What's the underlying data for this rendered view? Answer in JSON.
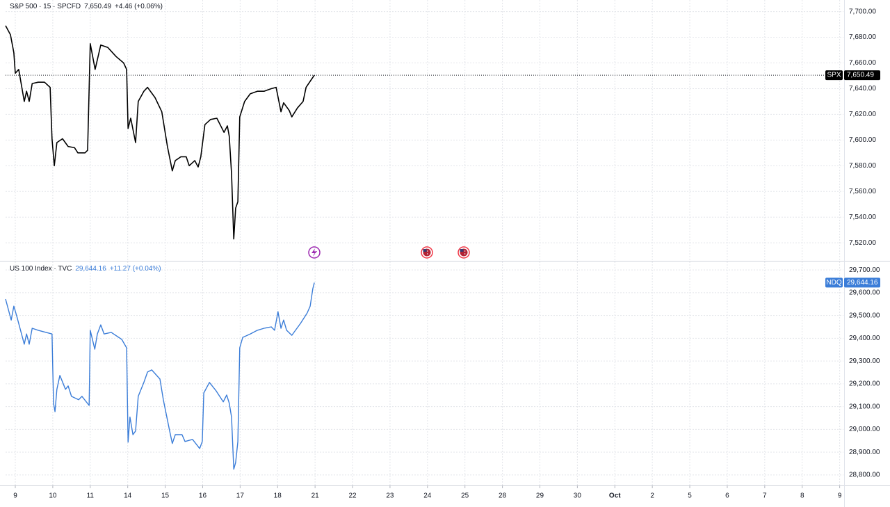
{
  "chart_data": [
    {
      "type": "line",
      "header": {
        "symbol": "S&P 500 · 15 · SPCFD",
        "price": "7,650.49",
        "change": "+4.46 (+0.06%)"
      },
      "price_tag": {
        "name": "SPX",
        "label": "7,650.49"
      },
      "xlim": [
        -0.26,
        22.1
      ],
      "ylim": [
        7506,
        7709
      ],
      "yticks": [
        {
          "value": 7520,
          "label": "7,520.00"
        },
        {
          "value": 7540,
          "label": "7,540.00"
        },
        {
          "value": 7560,
          "label": "7,560.00"
        },
        {
          "value": 7580,
          "label": "7,580.00"
        },
        {
          "value": 7600,
          "label": "7,600.00"
        },
        {
          "value": 7620,
          "label": "7,620.00"
        },
        {
          "value": 7640,
          "label": "7,640.00"
        },
        {
          "value": 7660,
          "label": "7,660.00"
        },
        {
          "value": 7680,
          "label": "7,680.00"
        },
        {
          "value": 7700,
          "label": "7,700.00"
        }
      ],
      "grid": true,
      "series": [
        {
          "name": "SPX",
          "color": "#000000",
          "x": [
            -0.26,
            -0.13,
            -0.04,
            0,
            0.09,
            0.24,
            0.3,
            0.37,
            0.45,
            0.61,
            0.78,
            0.93,
            0.98,
            1.04,
            1.11,
            1.26,
            1.41,
            1.58,
            1.67,
            1.86,
            1.93,
            2.0,
            2.13,
            2.28,
            2.47,
            2.69,
            2.89,
            2.97,
            3.01,
            3.08,
            3.21,
            3.28,
            3.43,
            3.53,
            3.73,
            3.91,
            4.06,
            4.19,
            4.27,
            4.42,
            4.56,
            4.64,
            4.79,
            4.88,
            4.95,
            5.06,
            5.21,
            5.38,
            5.57,
            5.66,
            5.71,
            5.77,
            5.83,
            5.88,
            5.94,
            5.99,
            6.12,
            6.27,
            6.46,
            6.64,
            6.83,
            6.96,
            7.09,
            7.16,
            7.31,
            7.38,
            7.53,
            7.68,
            7.76,
            7.9,
            7.98
          ],
          "values": [
            7689,
            7682,
            7668,
            7652,
            7655,
            7630,
            7638,
            7630,
            7644,
            7645,
            7645,
            7641,
            7601,
            7580,
            7598,
            7601,
            7595,
            7594,
            7590,
            7590,
            7592,
            7675,
            7655,
            7674,
            7672,
            7665,
            7660,
            7655,
            7609,
            7617,
            7598,
            7630,
            7638,
            7641,
            7633,
            7622,
            7595,
            7576,
            7584,
            7587,
            7587,
            7580,
            7584,
            7579,
            7587,
            7612,
            7616,
            7617,
            7606,
            7611,
            7603,
            7574,
            7523,
            7547,
            7552,
            7618,
            7630,
            7636,
            7638,
            7638,
            7640,
            7641,
            7622,
            7629,
            7623,
            7618,
            7625,
            7630,
            7641,
            7647,
            7650.49
          ]
        }
      ]
    },
    {
      "type": "line",
      "header": {
        "symbol": "US 100 Index · TVC",
        "price": "29,644.16",
        "change": "+11.27 (+0.04%)"
      },
      "price_tag": {
        "name": "NDQ",
        "label": "29,644.16"
      },
      "xlim": [
        -0.26,
        22.1
      ],
      "ylim": [
        28754,
        29737
      ],
      "xticks": [
        {
          "value": 0,
          "label": "9"
        },
        {
          "value": 1,
          "label": "10"
        },
        {
          "value": 2,
          "label": "11"
        },
        {
          "value": 3,
          "label": "14"
        },
        {
          "value": 4,
          "label": "15"
        },
        {
          "value": 5,
          "label": "16"
        },
        {
          "value": 6,
          "label": "17"
        },
        {
          "value": 7,
          "label": "18"
        },
        {
          "value": 8,
          "label": "21"
        },
        {
          "value": 9,
          "label": "22"
        },
        {
          "value": 10,
          "label": "23"
        },
        {
          "value": 11,
          "label": "24"
        },
        {
          "value": 12,
          "label": "25"
        },
        {
          "value": 13,
          "label": "28"
        },
        {
          "value": 14,
          "label": "29"
        },
        {
          "value": 15,
          "label": "30"
        },
        {
          "value": 16,
          "label": "Oct"
        },
        {
          "value": 17,
          "label": "2"
        },
        {
          "value": 18,
          "label": "5"
        },
        {
          "value": 19,
          "label": "6"
        },
        {
          "value": 20,
          "label": "7"
        },
        {
          "value": 21,
          "label": "8"
        },
        {
          "value": 22,
          "label": "9"
        }
      ],
      "yticks": [
        {
          "value": 28800,
          "label": "28,800.00"
        },
        {
          "value": 28900,
          "label": "28,900.00"
        },
        {
          "value": 29000,
          "label": "29,000.00"
        },
        {
          "value": 29100,
          "label": "29,100.00"
        },
        {
          "value": 29200,
          "label": "29,200.00"
        },
        {
          "value": 29300,
          "label": "29,300.00"
        },
        {
          "value": 29400,
          "label": "29,400.00"
        },
        {
          "value": 29500,
          "label": "29,500.00"
        },
        {
          "value": 29600,
          "label": "29,600.00"
        },
        {
          "value": 29700,
          "label": "29,700.00"
        }
      ],
      "grid": true,
      "series": [
        {
          "name": "NDQ",
          "color": "#3b7dd8",
          "x": [
            -0.26,
            -0.11,
            -0.04,
            0.04,
            0.24,
            0.3,
            0.37,
            0.45,
            0.61,
            0.82,
            0.98,
            1.02,
            1.06,
            1.11,
            1.19,
            1.34,
            1.41,
            1.5,
            1.69,
            1.78,
            1.97,
            2.0,
            2.12,
            2.19,
            2.28,
            2.37,
            2.56,
            2.84,
            2.97,
            3.01,
            3.06,
            3.14,
            3.21,
            3.28,
            3.43,
            3.53,
            3.64,
            3.86,
            3.95,
            4.12,
            4.19,
            4.27,
            4.45,
            4.53,
            4.73,
            4.92,
            4.99,
            5.03,
            5.18,
            5.36,
            5.55,
            5.64,
            5.71,
            5.77,
            5.83,
            5.88,
            5.94,
            5.99,
            6.07,
            6.27,
            6.46,
            6.64,
            6.83,
            6.92,
            7.01,
            7.09,
            7.16,
            7.24,
            7.38,
            7.61,
            7.79,
            7.87,
            7.94,
            7.98
          ],
          "values": [
            29572,
            29480,
            29541,
            29496,
            29374,
            29419,
            29374,
            29444,
            29435,
            29426,
            29419,
            29115,
            29078,
            29176,
            29237,
            29176,
            29191,
            29145,
            29130,
            29145,
            29105,
            29435,
            29352,
            29419,
            29459,
            29419,
            29426,
            29395,
            29358,
            28944,
            29054,
            28977,
            28993,
            29145,
            29206,
            29252,
            29261,
            29221,
            29130,
            28993,
            28938,
            28977,
            28977,
            28947,
            28956,
            28916,
            28947,
            29160,
            29206,
            29169,
            29121,
            29151,
            29115,
            29054,
            28825,
            28855,
            28947,
            29358,
            29404,
            29419,
            29435,
            29444,
            29450,
            29435,
            29517,
            29444,
            29480,
            29435,
            29413,
            29465,
            29511,
            29541,
            29618,
            29644.16
          ]
        }
      ]
    }
  ]
}
